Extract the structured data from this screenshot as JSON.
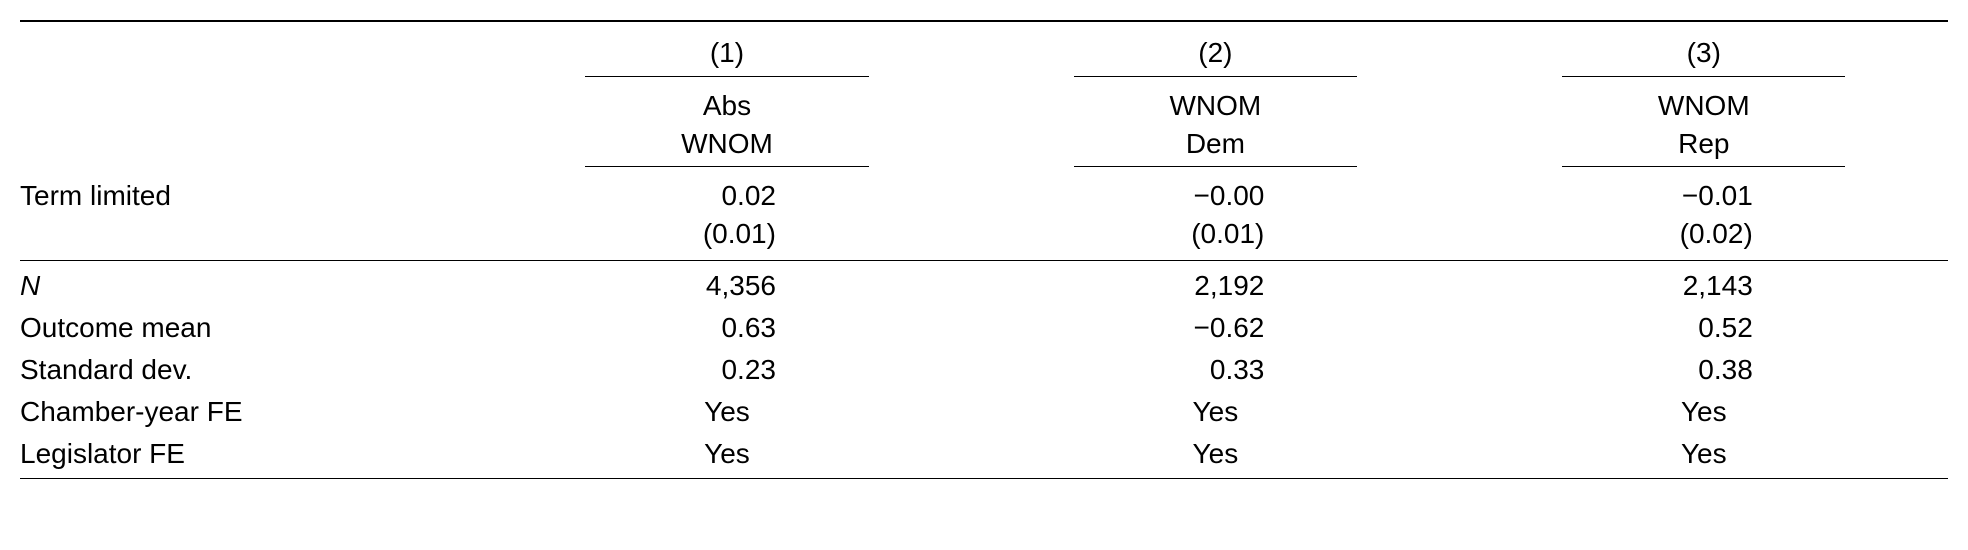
{
  "table": {
    "columns": [
      {
        "number": "(1)",
        "label_line1": "Abs",
        "label_line2": "WNOM"
      },
      {
        "number": "(2)",
        "label_line1": "WNOM",
        "label_line2": "Dem"
      },
      {
        "number": "(3)",
        "label_line1": "WNOM",
        "label_line2": "Rep"
      }
    ],
    "coef_row": {
      "label": "Term limited",
      "cells": [
        {
          "est": "0.02",
          "se": "(0.01)"
        },
        {
          "est": "−0.00",
          "se": "(0.01)"
        },
        {
          "est": "−0.01",
          "se": "(0.02)"
        }
      ]
    },
    "stats_rows": [
      {
        "label": "N",
        "label_italic": true,
        "values": [
          "4,356",
          "2,192",
          "2,143"
        ]
      },
      {
        "label": "Outcome mean",
        "label_italic": false,
        "values": [
          "0.63",
          "−0.62",
          "0.52"
        ]
      },
      {
        "label": "Standard dev.",
        "label_italic": false,
        "values": [
          "0.23",
          "0.33",
          "0.38"
        ]
      },
      {
        "label": "Chamber-year FE",
        "label_italic": false,
        "values": [
          "Yes",
          "Yes",
          "Yes"
        ]
      },
      {
        "label": "Legislator FE",
        "label_italic": false,
        "values": [
          "Yes",
          "Yes",
          "Yes"
        ]
      }
    ],
    "style": {
      "font_family": "Helvetica",
      "font_size_pt": 21,
      "text_color": "#000000",
      "background_color": "#ffffff",
      "rule_color": "#000000",
      "col_underline_width_pct": 58
    }
  }
}
